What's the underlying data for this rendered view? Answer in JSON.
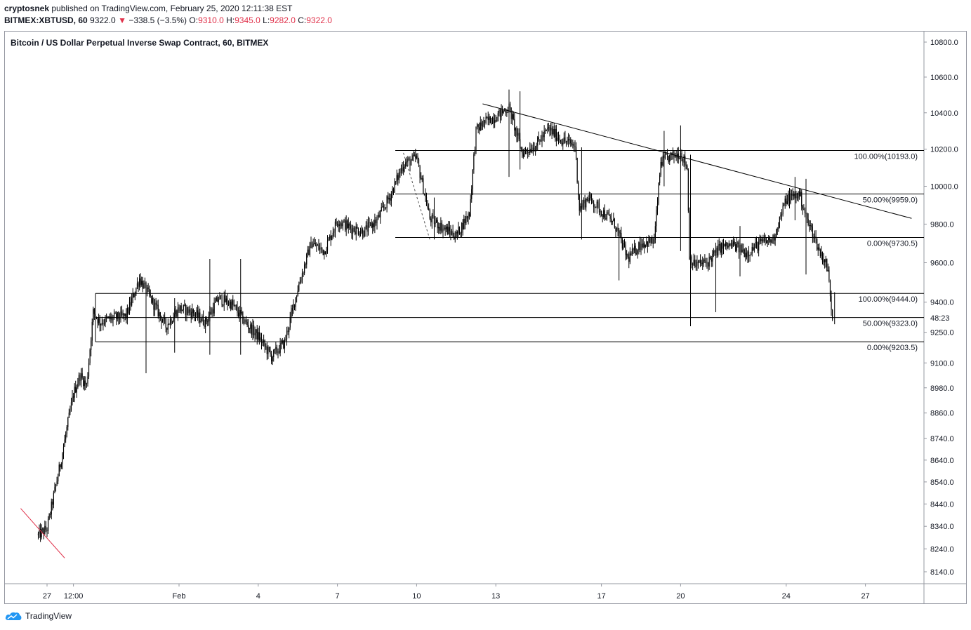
{
  "header": {
    "author": "cryptosnek",
    "published_text": " published on TradingView.com, February 25, 2020 12:11:38 EST",
    "symbol": "BITMEX:XBTUSD, 60",
    "last": "9322.0",
    "change_arrow": "▼",
    "change": "−338.5 (−3.5%)",
    "o_label": "O:",
    "o_value": "9310.0",
    "h_label": "H:",
    "h_value": "9345.0",
    "l_label": "L:",
    "l_value": "9282.0",
    "c_label": "C:",
    "c_value": "9322.0"
  },
  "footer": {
    "brand": "TradingView"
  },
  "colors": {
    "candle": "#000000",
    "red_line": "#e0324b",
    "grid_border": "#9598a1"
  },
  "chart_data": {
    "type": "candlestick",
    "title": "Bitcoin / US Dollar Perpetual Inverse Swap Contract, 60, BITMEX",
    "x_tick_labels": [
      "27",
      "12:00",
      "Feb",
      "4",
      "7",
      "10",
      "13",
      "17",
      "20",
      "24",
      "27"
    ],
    "y_tick_values": [
      10800,
      10600,
      10400,
      10200,
      10000,
      9800,
      9600,
      9400,
      9250,
      9100,
      8980,
      8860,
      8740,
      8640,
      8540,
      8440,
      8340,
      8240,
      8140
    ],
    "y_tick_labels": [
      "10800.0",
      "10600.0",
      "10400.0",
      "10200.0",
      "10000.0",
      "9800.0",
      "9600.0",
      "9400.0",
      "9250.0",
      "9100.0",
      "8980.0",
      "8860.0",
      "8740.0",
      "8640.0",
      "8540.0",
      "8440.0",
      "8340.0",
      "8240.0",
      "8140.0"
    ],
    "countdown_label": "48:23",
    "countdown_value": 9322,
    "y_scale": "log",
    "fib_levels": [
      {
        "label": "100.00%(10193.0)",
        "value": 10193.0
      },
      {
        "label": "50.00%(9959.0)",
        "value": 9959.0
      },
      {
        "label": "0.00%(9730.5)",
        "value": 9730.5
      },
      {
        "label": "100.00%(9444.0)",
        "value": 9444.0
      },
      {
        "label": "50.00%(9323.0)",
        "value": 9323.0
      },
      {
        "label": "0.00%(9203.5)",
        "value": 9203.5
      }
    ],
    "price_path": [
      [
        "2020-01-26 16:00",
        8300
      ],
      [
        "2020-01-27 00:00",
        8330
      ],
      [
        "2020-01-27 12:00",
        8620
      ],
      [
        "2020-01-28 00:00",
        8950
      ],
      [
        "2020-01-28 06:00",
        9040
      ],
      [
        "2020-01-28 12:00",
        8990
      ],
      [
        "2020-01-28 18:00",
        9350
      ],
      [
        "2020-01-29 00:00",
        9300
      ],
      [
        "2020-01-29 12:00",
        9320
      ],
      [
        "2020-01-30 00:00",
        9330
      ],
      [
        "2020-01-30 12:00",
        9520
      ],
      [
        "2020-01-31 00:00",
        9400
      ],
      [
        "2020-01-31 12:00",
        9280
      ],
      [
        "2020-02-01 00:00",
        9370
      ],
      [
        "2020-02-01 12:00",
        9350
      ],
      [
        "2020-02-02 00:00",
        9300
      ],
      [
        "2020-02-02 12:00",
        9420
      ],
      [
        "2020-02-03 00:00",
        9390
      ],
      [
        "2020-02-03 12:00",
        9300
      ],
      [
        "2020-02-04 00:00",
        9230
      ],
      [
        "2020-02-04 12:00",
        9130
      ],
      [
        "2020-02-05 00:00",
        9200
      ],
      [
        "2020-02-05 12:00",
        9470
      ],
      [
        "2020-02-06 00:00",
        9700
      ],
      [
        "2020-02-06 12:00",
        9660
      ],
      [
        "2020-02-07 00:00",
        9820
      ],
      [
        "2020-02-07 12:00",
        9780
      ],
      [
        "2020-02-08 00:00",
        9760
      ],
      [
        "2020-02-08 12:00",
        9820
      ],
      [
        "2020-02-09 00:00",
        9950
      ],
      [
        "2020-02-09 12:00",
        10120
      ],
      [
        "2020-02-10 00:00",
        10150
      ],
      [
        "2020-02-10 12:00",
        9830
      ],
      [
        "2020-02-11 00:00",
        9780
      ],
      [
        "2020-02-11 12:00",
        9740
      ],
      [
        "2020-02-12 00:00",
        9860
      ],
      [
        "2020-02-12 06:00",
        10300
      ],
      [
        "2020-02-12 12:00",
        10340
      ],
      [
        "2020-02-13 00:00",
        10380
      ],
      [
        "2020-02-13 12:00",
        10430
      ],
      [
        "2020-02-13 20:00",
        10260
      ],
      [
        "2020-02-14 00:00",
        10180
      ],
      [
        "2020-02-14 12:00",
        10220
      ],
      [
        "2020-02-15 00:00",
        10310
      ],
      [
        "2020-02-15 12:00",
        10250
      ],
      [
        "2020-02-16 00:00",
        10220
      ],
      [
        "2020-02-16 04:00",
        9880
      ],
      [
        "2020-02-16 12:00",
        9940
      ],
      [
        "2020-02-17 00:00",
        9870
      ],
      [
        "2020-02-17 12:00",
        9800
      ],
      [
        "2020-02-18 00:00",
        9620
      ],
      [
        "2020-02-18 12:00",
        9700
      ],
      [
        "2020-02-19 00:00",
        9710
      ],
      [
        "2020-02-19 06:00",
        10130
      ],
      [
        "2020-02-19 12:00",
        10150
      ],
      [
        "2020-02-20 00:00",
        10180
      ],
      [
        "2020-02-20 06:00",
        10100
      ],
      [
        "2020-02-20 08:00",
        9640
      ],
      [
        "2020-02-20 12:00",
        9590
      ],
      [
        "2020-02-21 00:00",
        9600
      ],
      [
        "2020-02-21 12:00",
        9680
      ],
      [
        "2020-02-22 00:00",
        9690
      ],
      [
        "2020-02-22 12:00",
        9650
      ],
      [
        "2020-02-23 00:00",
        9700
      ],
      [
        "2020-02-23 12:00",
        9720
      ],
      [
        "2020-02-24 00:00",
        9930
      ],
      [
        "2020-02-24 12:00",
        9960
      ],
      [
        "2020-02-24 20:00",
        9800
      ],
      [
        "2020-02-25 00:00",
        9760
      ],
      [
        "2020-02-25 06:00",
        9660
      ],
      [
        "2020-02-25 12:00",
        9600
      ],
      [
        "2020-02-25 14:00",
        9550
      ],
      [
        "2020-02-25 16:00",
        9440
      ],
      [
        "2020-02-25 18:00",
        9322
      ]
    ],
    "wicks": [
      [
        "2020-01-30 18:00",
        9050,
        9490
      ],
      [
        "2020-01-31 20:00",
        9150,
        9420
      ],
      [
        "2020-02-02 04:00",
        9140,
        9620
      ],
      [
        "2020-02-03 08:00",
        9140,
        9620
      ],
      [
        "2020-02-10 16:00",
        9720,
        9940
      ],
      [
        "2020-02-13 12:00",
        10050,
        10530
      ],
      [
        "2020-02-13 22:00",
        10090,
        10520
      ],
      [
        "2020-02-16 06:00",
        9720,
        10210
      ],
      [
        "2020-02-17 16:00",
        9510,
        9780
      ],
      [
        "2020-02-19 09:00",
        10000,
        10300
      ],
      [
        "2020-02-20 00:00",
        9660,
        10330
      ],
      [
        "2020-02-20 09:00",
        9280,
        10170
      ],
      [
        "2020-02-21 08:00",
        9350,
        9650
      ],
      [
        "2020-02-22 06:00",
        9530,
        9790
      ],
      [
        "2020-02-24 08:00",
        9820,
        10050
      ],
      [
        "2020-02-24 18:00",
        9540,
        10040
      ],
      [
        "2020-02-25 20:00",
        9290,
        9450
      ]
    ],
    "trend_line": [
      [
        "2020-02-12 12:00",
        10450
      ],
      [
        "2020-02-28 18:00",
        9830
      ]
    ],
    "red_line": [
      [
        "2020-01-26 00:00",
        8420
      ],
      [
        "2020-01-27 16:00",
        8200
      ]
    ],
    "dashed_line": [
      [
        "2020-02-09 12:00",
        10180
      ],
      [
        "2020-02-10 12:00",
        9720
      ]
    ]
  }
}
